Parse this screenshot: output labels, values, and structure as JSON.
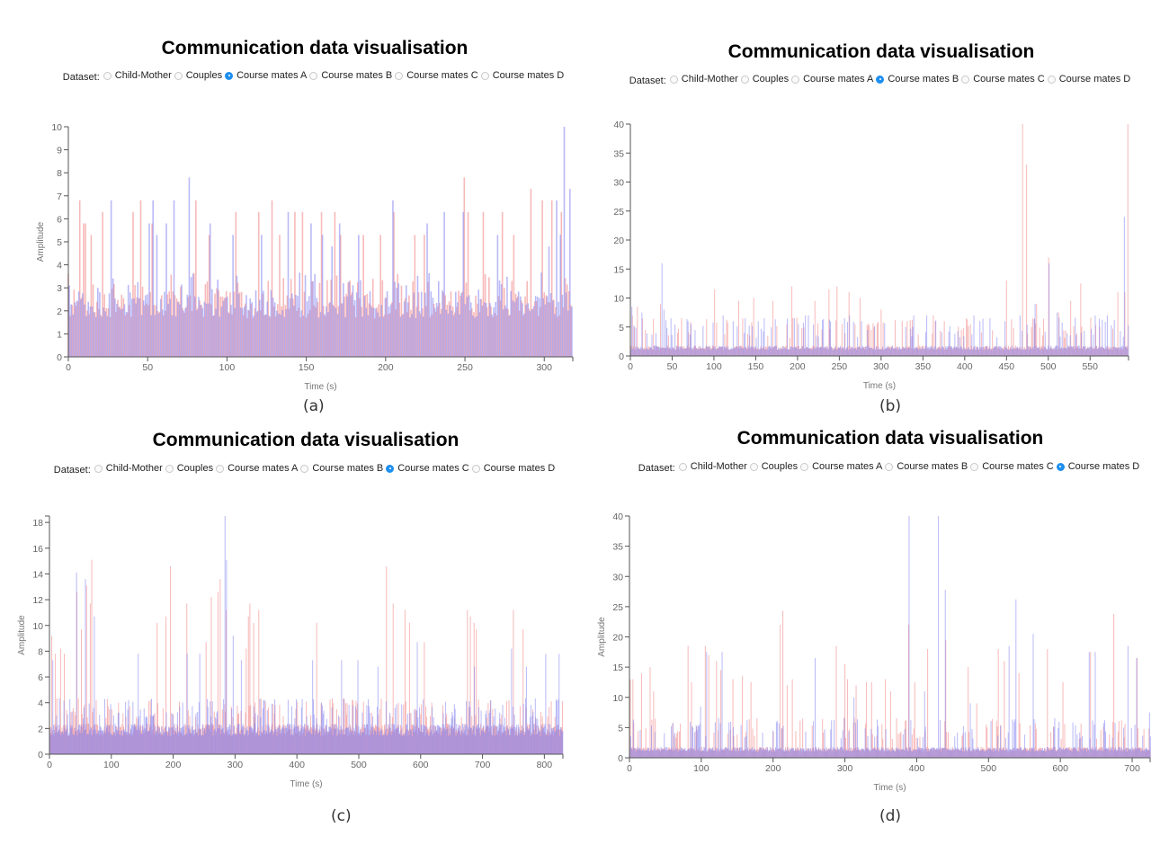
{
  "panels": [
    {
      "id": "a",
      "title": "Communication data visualisation",
      "dataset_label": "Dataset:",
      "options": [
        "Child-Mother",
        "Couples",
        "Course mates A",
        "Course mates B",
        "Course mates C",
        "Course mates D"
      ],
      "selected": "Course mates A",
      "caption": "(a)"
    },
    {
      "id": "b",
      "title": "Communication data visualisation",
      "dataset_label": "Dataset:",
      "options": [
        "Child-Mother",
        "Couples",
        "Course mates A",
        "Course mates B",
        "Course mates C",
        "Course mates D"
      ],
      "selected": "Course mates B",
      "caption": "(b)"
    },
    {
      "id": "c",
      "title": "Communication data visualisation",
      "dataset_label": "Dataset:",
      "options": [
        "Child-Mother",
        "Couples",
        "Course mates A",
        "Course mates B",
        "Course mates C",
        "Course mates D"
      ],
      "selected": "Course mates C",
      "caption": "(c)"
    },
    {
      "id": "d",
      "title": "Communication data visualisation",
      "dataset_label": "Dataset:",
      "options": [
        "Child-Mother",
        "Couples",
        "Course mates A",
        "Course mates B",
        "Course mates C",
        "Course mates D"
      ],
      "selected": "Course mates D",
      "caption": "(d)"
    }
  ],
  "colors": {
    "series_red": "#f08080",
    "series_blue": "#8080f0",
    "overlap": "#d0307a",
    "radio_selected": "#1e8ff0"
  },
  "chart_data": [
    {
      "type": "bar",
      "title": "Communication data visualisation",
      "xlabel": "Time (s)",
      "ylabel": "Amplitude",
      "xlim": [
        0,
        318
      ],
      "ylim": [
        0,
        10
      ],
      "xticks": [
        0,
        50,
        100,
        150,
        200,
        250,
        300
      ],
      "yticks": [
        0,
        1,
        2,
        3,
        4,
        5,
        6,
        7,
        8,
        9,
        10
      ],
      "grid": false,
      "series": [
        {
          "name": "speaker-red",
          "color": "#f08080",
          "baseline": 2.4,
          "peaks": [
            [
              7,
              6.8
            ],
            [
              9,
              5.8
            ],
            [
              11,
              5.8
            ],
            [
              14,
              5.3
            ],
            [
              22,
              6.3
            ],
            [
              41,
              6.3
            ],
            [
              45,
              6.8
            ],
            [
              53,
              5.8
            ],
            [
              80,
              6.8
            ],
            [
              89,
              5.3
            ],
            [
              105,
              6.3
            ],
            [
              120,
              6.3
            ],
            [
              128,
              6.8
            ],
            [
              133,
              5.3
            ],
            [
              143,
              6.3
            ],
            [
              148,
              6.3
            ],
            [
              160,
              6.3
            ],
            [
              168,
              6.3
            ],
            [
              172,
              5.3
            ],
            [
              186,
              5.3
            ],
            [
              197,
              5.3
            ],
            [
              205,
              6.3
            ],
            [
              218,
              5.3
            ],
            [
              224,
              5.3
            ],
            [
              250,
              7.8
            ],
            [
              252,
              6.3
            ],
            [
              262,
              6.3
            ],
            [
              274,
              6.3
            ],
            [
              281,
              5.3
            ],
            [
              291,
              7.3
            ],
            [
              299,
              6.8
            ],
            [
              305,
              6.8
            ],
            [
              311,
              6.3
            ]
          ]
        },
        {
          "name": "speaker-blue",
          "color": "#8080f0",
          "baseline": 2.4,
          "peaks": [
            [
              26,
              6.8
            ],
            [
              50,
              5.8
            ],
            [
              53,
              6.8
            ],
            [
              55,
              5.3
            ],
            [
              61,
              5.8
            ],
            [
              66,
              6.8
            ],
            [
              75,
              7.8
            ],
            [
              89,
              5.8
            ],
            [
              103,
              5.3
            ],
            [
              121,
              5.3
            ],
            [
              138,
              6.3
            ],
            [
              152,
              5.8
            ],
            [
              160,
              5.3
            ],
            [
              165,
              4.8
            ],
            [
              170,
              5.8
            ],
            [
              182,
              5.3
            ],
            [
              204,
              6.8
            ],
            [
              225,
              5.8
            ],
            [
              236,
              6.3
            ],
            [
              248,
              6.3
            ],
            [
              270,
              5.3
            ],
            [
              302,
              4.8
            ],
            [
              307,
              6.8
            ],
            [
              310,
              5.3
            ],
            [
              312,
              10.2
            ],
            [
              316,
              7.3
            ]
          ]
        }
      ]
    },
    {
      "type": "bar",
      "title": "Communication data visualisation",
      "xlabel": "Time (s)",
      "ylabel": "",
      "xlim": [
        0,
        596
      ],
      "ylim": [
        0,
        40
      ],
      "xticks": [
        0,
        50,
        100,
        150,
        200,
        250,
        300,
        350,
        400,
        450,
        500,
        550
      ],
      "yticks": [
        0,
        5,
        10,
        15,
        20,
        25,
        30,
        35,
        40
      ],
      "grid": false,
      "series": [
        {
          "name": "speaker-red",
          "color": "#f08080",
          "baseline": 1.5,
          "peaks": [
            [
              2,
              7
            ],
            [
              8,
              8.5
            ],
            [
              14,
              6.5
            ],
            [
              36,
              9
            ],
            [
              101,
              11.5
            ],
            [
              129,
              9.5
            ],
            [
              148,
              10
            ],
            [
              170,
              9.5
            ],
            [
              193,
              12
            ],
            [
              221,
              9.5
            ],
            [
              238,
              11.5
            ],
            [
              247,
              12
            ],
            [
              262,
              11
            ],
            [
              275,
              10
            ],
            [
              300,
              8
            ],
            [
              362,
              7
            ],
            [
              376,
              6
            ],
            [
              450,
              13
            ],
            [
              469,
              40
            ],
            [
              474,
              33
            ],
            [
              486,
              9
            ],
            [
              500,
              17
            ],
            [
              512,
              7.5
            ],
            [
              527,
              9.5
            ],
            [
              539,
              12.5
            ],
            [
              583,
              11
            ],
            [
              591,
              11
            ],
            [
              595,
              40
            ]
          ]
        },
        {
          "name": "speaker-blue",
          "color": "#8080f0",
          "baseline": 1.5,
          "peaks": [
            [
              1,
              8.5
            ],
            [
              13,
              7.5
            ],
            [
              37,
              16
            ],
            [
              40,
              8
            ],
            [
              48,
              6.5
            ],
            [
              68,
              6
            ],
            [
              110,
              7
            ],
            [
              122,
              6
            ],
            [
              137,
              6.5
            ],
            [
              160,
              6.5
            ],
            [
              196,
              6.5
            ],
            [
              209,
              7
            ],
            [
              212,
              7
            ],
            [
              255,
              6.5
            ],
            [
              262,
              7
            ],
            [
              338,
              7
            ],
            [
              354,
              7
            ],
            [
              410,
              7
            ],
            [
              447,
              6
            ],
            [
              465,
              7
            ],
            [
              484,
              9
            ],
            [
              500,
              16
            ],
            [
              510,
              7.5
            ],
            [
              555,
              7
            ],
            [
              570,
              7
            ],
            [
              590,
              24
            ]
          ]
        }
      ]
    },
    {
      "type": "bar",
      "title": "Communication data visualisation",
      "xlabel": "Time (s)",
      "ylabel": "Amplitude",
      "xlim": [
        0,
        830
      ],
      "ylim": [
        0,
        18.5
      ],
      "xticks": [
        0,
        100,
        200,
        300,
        400,
        500,
        600,
        700,
        800
      ],
      "yticks": [
        0,
        2,
        4,
        6,
        8,
        10,
        12,
        14,
        16,
        18
      ],
      "grid": false,
      "series": [
        {
          "name": "speaker-red",
          "color": "#f08080",
          "baseline": 2.0,
          "peaks": [
            [
              3,
              9.2
            ],
            [
              10,
              7.8
            ],
            [
              18,
              8.2
            ],
            [
              24,
              7.8
            ],
            [
              44,
              12.6
            ],
            [
              52,
              9.7
            ],
            [
              60,
              13.1
            ],
            [
              66,
              11.7
            ],
            [
              68,
              15.1
            ],
            [
              174,
              10.2
            ],
            [
              188,
              10.7
            ],
            [
              196,
              14.6
            ],
            [
              222,
              11.7
            ],
            [
              253,
              8.7
            ],
            [
              261,
              12.2
            ],
            [
              272,
              12.6
            ],
            [
              276,
              13.6
            ],
            [
              286,
              11.2
            ],
            [
              318,
              8.2
            ],
            [
              322,
              10.7
            ],
            [
              324,
              11.7
            ],
            [
              330,
              10.2
            ],
            [
              338,
              11.2
            ],
            [
              432,
              10.2
            ],
            [
              545,
              14.6
            ],
            [
              555,
              11.7
            ],
            [
              575,
              11.2
            ],
            [
              582,
              10.2
            ],
            [
              606,
              8.7
            ],
            [
              675,
              11.2
            ],
            [
              680,
              10.7
            ],
            [
              686,
              10.2
            ],
            [
              690,
              9.7
            ],
            [
              750,
              11.2
            ],
            [
              766,
              9.7
            ]
          ]
        },
        {
          "name": "speaker-blue",
          "color": "#8080f0",
          "baseline": 2.0,
          "peaks": [
            [
              5,
              7.3
            ],
            [
              43,
              14.1
            ],
            [
              58,
              13.6
            ],
            [
              72,
              10.7
            ],
            [
              143,
              7.8
            ],
            [
              222,
              7.8
            ],
            [
              242,
              7.8
            ],
            [
              283,
              18.5
            ],
            [
              285,
              15.1
            ],
            [
              296,
              9.2
            ],
            [
              310,
              7.3
            ],
            [
              425,
              7.3
            ],
            [
              472,
              7.3
            ],
            [
              498,
              7.3
            ],
            [
              530,
              6.8
            ],
            [
              594,
              8.7
            ],
            [
              686,
              6.8
            ],
            [
              746,
              8.2
            ],
            [
              770,
              6.8
            ],
            [
              802,
              7.8
            ],
            [
              823,
              7.8
            ]
          ]
        }
      ]
    },
    {
      "type": "bar",
      "title": "Communication data visualisation",
      "xlabel": "Time (s)",
      "ylabel": "Amplitude",
      "xlim": [
        0,
        725
      ],
      "ylim": [
        0,
        40
      ],
      "xticks": [
        0,
        100,
        200,
        300,
        400,
        500,
        600,
        700
      ],
      "yticks": [
        0,
        5,
        10,
        15,
        20,
        25,
        30,
        35,
        40
      ],
      "grid": false,
      "series": [
        {
          "name": "speaker-red",
          "color": "#f08080",
          "baseline": 1.5,
          "peaks": [
            [
              1,
              13
            ],
            [
              5,
              13
            ],
            [
              17,
              14
            ],
            [
              29,
              15
            ],
            [
              33,
              11
            ],
            [
              82,
              18.5
            ],
            [
              86,
              12.5
            ],
            [
              106,
              18.5
            ],
            [
              110,
              17
            ],
            [
              121,
              16
            ],
            [
              127,
              14.5
            ],
            [
              144,
              13
            ],
            [
              157,
              13.5
            ],
            [
              169,
              12.5
            ],
            [
              210,
              22
            ],
            [
              213,
              24.3
            ],
            [
              219,
              12
            ],
            [
              227,
              13
            ],
            [
              288,
              18.5
            ],
            [
              300,
              15.5
            ],
            [
              304,
              13
            ],
            [
              316,
              12
            ],
            [
              330,
              12.5
            ],
            [
              337,
              12.5
            ],
            [
              356,
              13
            ],
            [
              364,
              11
            ],
            [
              389,
              22
            ],
            [
              397,
              12.5
            ],
            [
              415,
              18
            ],
            [
              440,
              19.5
            ],
            [
              472,
              15
            ],
            [
              483,
              9
            ],
            [
              514,
              18
            ],
            [
              522,
              16
            ],
            [
              542,
              14
            ],
            [
              582,
              18
            ],
            [
              603,
              12.5
            ],
            [
              642,
              17.5
            ],
            [
              674,
              23.8
            ],
            [
              707,
              16.5
            ]
          ]
        },
        {
          "name": "speaker-blue",
          "color": "#8080f0",
          "baseline": 1.5,
          "peaks": [
            [
              98,
              8.5
            ],
            [
              107,
              17.5
            ],
            [
              128,
              17.5
            ],
            [
              258,
              16.5
            ],
            [
              312,
              10
            ],
            [
              389,
              40
            ],
            [
              410,
              11
            ],
            [
              430,
              40
            ],
            [
              439,
              27.8
            ],
            [
              474,
              9
            ],
            [
              528,
              18.5
            ],
            [
              537,
              26.2
            ],
            [
              562,
              20.5
            ],
            [
              640,
              17.5
            ],
            [
              648,
              17.5
            ],
            [
              694,
              18.5
            ],
            [
              705,
              16.5
            ],
            [
              723,
              7.5
            ]
          ]
        }
      ]
    }
  ]
}
